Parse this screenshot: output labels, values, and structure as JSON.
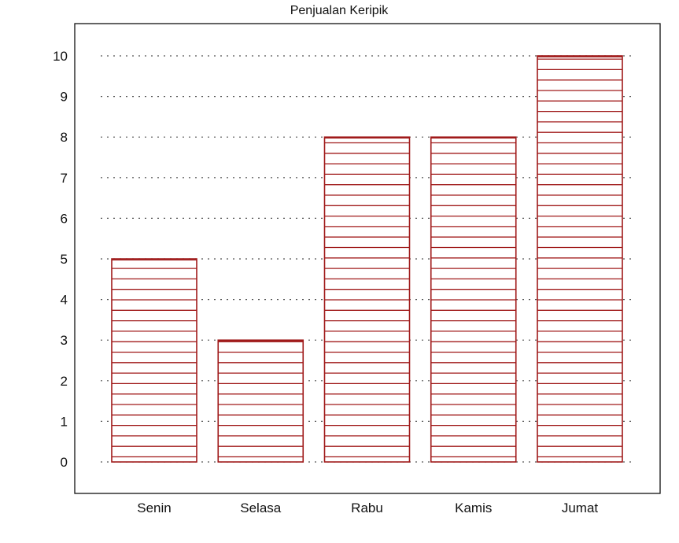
{
  "chart_data": {
    "type": "bar",
    "title": "Penjualan Keripik",
    "xlabel": "",
    "ylabel": "",
    "categories": [
      "Senin",
      "Selasa",
      "Rabu",
      "Kamis",
      "Jumat"
    ],
    "values": [
      5,
      3,
      8,
      8,
      10
    ],
    "ylim": [
      -0.8,
      10.8
    ],
    "yticks": [
      0,
      1,
      2,
      3,
      4,
      5,
      6,
      7,
      8,
      9,
      10
    ],
    "grid": true,
    "legend": false,
    "bar_color": "#a01a1a",
    "bar_pattern": "horizontal-hatch"
  }
}
